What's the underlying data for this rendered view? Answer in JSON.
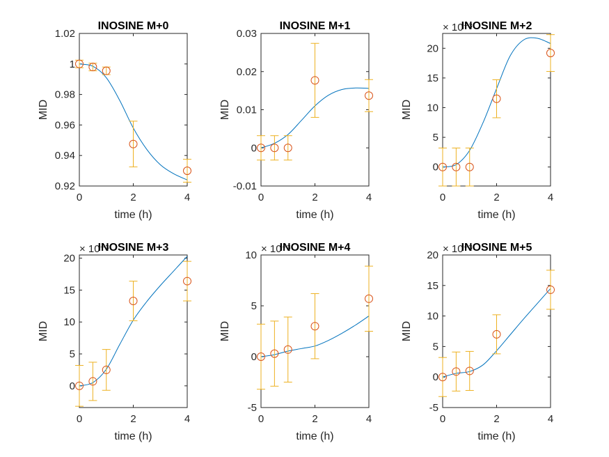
{
  "figure": {
    "background": "#ffffff"
  },
  "style": {
    "fit_color": "#0072BD",
    "marker_color": "#D95319",
    "errorbar_color": "#EDB120",
    "axis_color": "#262626"
  },
  "chart_data": [
    {
      "type": "scatter",
      "title": "INOSINE M+0",
      "xlabel": "time (h)",
      "ylabel": "MID",
      "exponent_label": "",
      "xlim": [
        0,
        4
      ],
      "ylim": [
        0.92,
        1.02
      ],
      "xticks": [
        0,
        2,
        4
      ],
      "xtick_labels": [
        "0",
        "2",
        "4"
      ],
      "yticks": [
        0.92,
        0.94,
        0.96,
        0.98,
        1.0,
        1.02
      ],
      "ytick_labels": [
        "0.92",
        "0.94",
        "0.96",
        "0.98",
        "1",
        "1.02"
      ],
      "measured": {
        "x": [
          0,
          0.5,
          1,
          2,
          4
        ],
        "y": [
          1.0,
          0.998,
          0.9955,
          0.9475,
          0.93
        ],
        "err": [
          0.0025,
          0.0025,
          0.0025,
          0.015,
          0.0075
        ]
      },
      "fit": {
        "x": [
          0,
          0.5,
          1,
          1.5,
          2,
          2.5,
          3,
          3.5,
          4
        ],
        "y": [
          1.0,
          0.9985,
          0.991,
          0.976,
          0.958,
          0.944,
          0.934,
          0.928,
          0.924
        ]
      }
    },
    {
      "type": "scatter",
      "title": "INOSINE M+1",
      "xlabel": "time (h)",
      "ylabel": "MID",
      "exponent_label": "",
      "xlim": [
        0,
        4
      ],
      "ylim": [
        -0.01,
        0.03
      ],
      "xticks": [
        0,
        2,
        4
      ],
      "xtick_labels": [
        "0",
        "2",
        "4"
      ],
      "yticks": [
        -0.01,
        0,
        0.01,
        0.02,
        0.03
      ],
      "ytick_labels": [
        "-0.01",
        "0",
        "0.01",
        "0.02",
        "0.03"
      ],
      "measured": {
        "x": [
          0,
          0.5,
          1,
          2,
          4
        ],
        "y": [
          0,
          0,
          0,
          0.0177,
          0.0137
        ],
        "err": [
          0.0032,
          0.0032,
          0.0032,
          0.0097,
          0.0042
        ]
      },
      "fit": {
        "x": [
          0,
          0.5,
          1,
          1.5,
          2,
          2.5,
          3,
          3.5,
          4
        ],
        "y": [
          0,
          0.0012,
          0.0035,
          0.0072,
          0.011,
          0.0138,
          0.0153,
          0.0157,
          0.0156
        ]
      }
    },
    {
      "type": "scatter",
      "title": "INOSINE M+2",
      "xlabel": "time (h)",
      "ylabel": "MID",
      "exponent_label": "× 10⁻³",
      "xlim": [
        0,
        4
      ],
      "ylim": [
        -3.2,
        22.5
      ],
      "xticks": [
        0,
        2,
        4
      ],
      "xtick_labels": [
        "0",
        "2",
        "4"
      ],
      "yticks": [
        0,
        5,
        10,
        15,
        20
      ],
      "ytick_labels": [
        "0",
        "5",
        "10",
        "15",
        "20"
      ],
      "measured": {
        "x": [
          0,
          0.5,
          1,
          2,
          4
        ],
        "y": [
          0,
          0,
          0,
          11.5,
          19.2
        ],
        "err": [
          3.2,
          3.2,
          3.2,
          3.2,
          3.1
        ]
      },
      "fit": {
        "x": [
          0,
          0.5,
          1,
          1.5,
          2,
          2.5,
          3,
          3.5,
          4
        ],
        "y": [
          0,
          0.4,
          2.8,
          7.5,
          13.2,
          18.7,
          21.4,
          21.7,
          20.8
        ]
      }
    },
    {
      "type": "scatter",
      "title": "INOSINE M+3",
      "xlabel": "time (h)",
      "ylabel": "MID",
      "exponent_label": "× 10⁻³",
      "xlim": [
        0,
        4
      ],
      "ylim": [
        -3.4,
        20.5
      ],
      "xticks": [
        0,
        2,
        4
      ],
      "xtick_labels": [
        "0",
        "2",
        "4"
      ],
      "yticks": [
        0,
        5,
        10,
        15,
        20
      ],
      "ytick_labels": [
        "0",
        "5",
        "10",
        "15",
        "20"
      ],
      "measured": {
        "x": [
          0,
          0.5,
          1,
          2,
          4
        ],
        "y": [
          0,
          0.7,
          2.5,
          13.3,
          16.4
        ],
        "err": [
          3.2,
          3.0,
          3.2,
          3.1,
          3.1
        ]
      },
      "fit": {
        "x": [
          0,
          0.5,
          1,
          1.5,
          2,
          2.5,
          3,
          3.5,
          4
        ],
        "y": [
          0,
          0.5,
          2.6,
          6.5,
          10.3,
          13.2,
          15.7,
          18.0,
          20.3
        ]
      }
    },
    {
      "type": "scatter",
      "title": "INOSINE M+4",
      "xlabel": "time (h)",
      "ylabel": "MID",
      "exponent_label": "× 10⁻³",
      "xlim": [
        0,
        4
      ],
      "ylim": [
        -5,
        10
      ],
      "xticks": [
        0,
        2,
        4
      ],
      "xtick_labels": [
        "0",
        "2",
        "4"
      ],
      "yticks": [
        -5,
        0,
        5,
        10
      ],
      "ytick_labels": [
        "-5",
        "0",
        "5",
        "10"
      ],
      "measured": {
        "x": [
          0,
          0.5,
          1,
          2,
          4
        ],
        "y": [
          0,
          0.3,
          0.7,
          3.0,
          5.7
        ],
        "err": [
          3.2,
          3.2,
          3.2,
          3.2,
          3.2
        ]
      },
      "fit": {
        "x": [
          0,
          0.5,
          1,
          1.5,
          2,
          2.5,
          3,
          3.5,
          4
        ],
        "y": [
          0,
          0.2,
          0.55,
          0.8,
          1.05,
          1.6,
          2.3,
          3.1,
          4.0
        ]
      }
    },
    {
      "type": "scatter",
      "title": "INOSINE M+5",
      "xlabel": "time (h)",
      "ylabel": "MID",
      "exponent_label": "× 10⁻³",
      "xlim": [
        0,
        4
      ],
      "ylim": [
        -5,
        20
      ],
      "xticks": [
        0,
        2,
        4
      ],
      "xtick_labels": [
        "0",
        "2",
        "4"
      ],
      "yticks": [
        -5,
        0,
        5,
        10,
        15,
        20
      ],
      "ytick_labels": [
        "-5",
        "0",
        "5",
        "10",
        "15",
        "20"
      ],
      "measured": {
        "x": [
          0,
          0.5,
          1,
          2,
          4
        ],
        "y": [
          0,
          0.9,
          1.0,
          7.0,
          14.3
        ],
        "err": [
          3.2,
          3.2,
          3.2,
          3.2,
          3.2
        ]
      },
      "fit": {
        "x": [
          0,
          0.5,
          1,
          1.5,
          2,
          2.5,
          3,
          3.5,
          4
        ],
        "y": [
          0,
          0.6,
          0.9,
          2.0,
          4.3,
          6.9,
          9.5,
          12.0,
          14.5
        ]
      }
    }
  ]
}
